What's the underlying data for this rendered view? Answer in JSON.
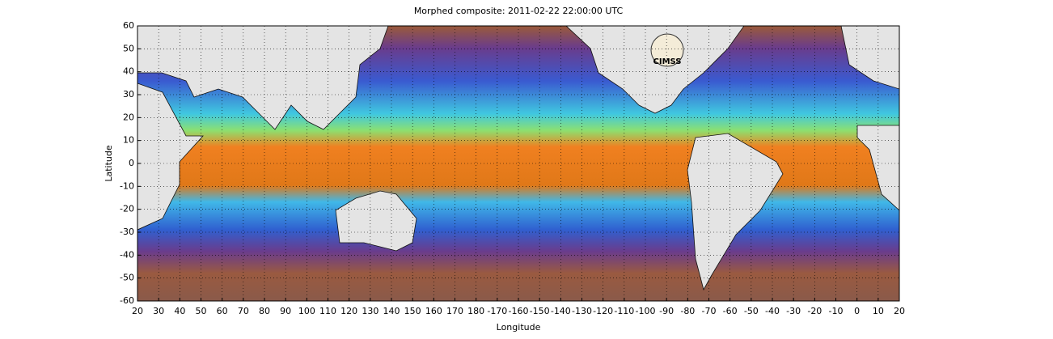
{
  "chart_data": {
    "type": "map",
    "title": "Morphed composite: 2011-02-22 22:00:00 UTC",
    "xlabel": "Longitude",
    "ylabel": "Latitude",
    "logo": "CIMSS",
    "xlim": [
      20,
      380
    ],
    "ylim": [
      -60,
      60
    ],
    "xticks": [
      20,
      30,
      40,
      50,
      60,
      70,
      80,
      90,
      100,
      110,
      120,
      130,
      140,
      150,
      160,
      170,
      180,
      {
        "value": 190,
        "label": "-170"
      },
      {
        "value": 200,
        "label": "-160"
      },
      {
        "value": 210,
        "label": "-150"
      },
      {
        "value": 220,
        "label": "-140"
      },
      {
        "value": 230,
        "label": "-130"
      },
      {
        "value": 240,
        "label": "-120"
      },
      {
        "value": 250,
        "label": "-110"
      },
      {
        "value": 260,
        "label": "-100"
      },
      {
        "value": 270,
        "label": "-90"
      },
      {
        "value": 280,
        "label": "-80"
      },
      {
        "value": 290,
        "label": "-70"
      },
      {
        "value": 300,
        "label": "-60"
      },
      {
        "value": 310,
        "label": "-50"
      },
      {
        "value": 320,
        "label": "-40"
      },
      {
        "value": 330,
        "label": "-30"
      },
      {
        "value": 340,
        "label": "-20"
      },
      {
        "value": 350,
        "label": "-10"
      },
      {
        "value": 360,
        "label": "0"
      },
      {
        "value": 370,
        "label": "10"
      },
      {
        "value": 380,
        "label": "20"
      }
    ],
    "yticks": [
      -60,
      -50,
      -40,
      -30,
      -20,
      -10,
      0,
      10,
      20,
      30,
      40,
      50,
      60
    ],
    "grid": true
  }
}
